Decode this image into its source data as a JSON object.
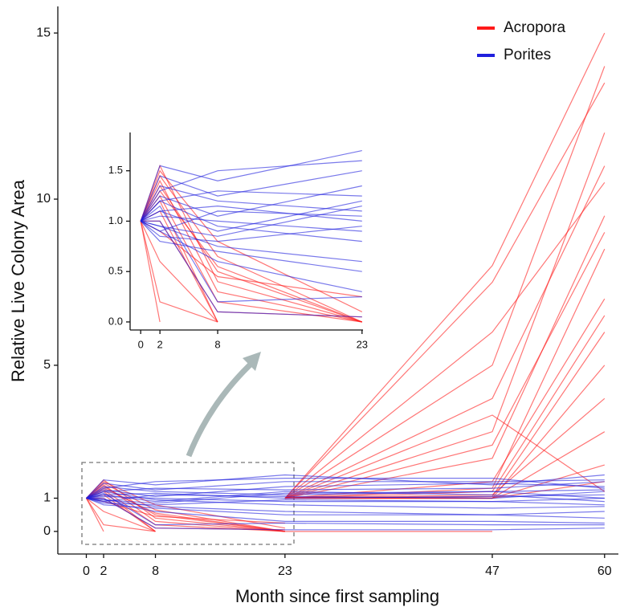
{
  "chart_data": [
    {
      "type": "line",
      "xlabel": "Month since first sampling",
      "ylabel": "Relative Live Colony Area",
      "x": [
        0,
        2,
        8,
        23,
        47,
        60
      ],
      "xlim": [
        -3.3,
        61.6
      ],
      "xticks": [
        0,
        2,
        8,
        23,
        47,
        60
      ],
      "ylim": [
        -0.68,
        15.8
      ],
      "yticks": [
        0,
        1,
        5,
        10,
        15
      ],
      "legend": "top-right",
      "series": [
        {
          "name": "Acropora",
          "color": "#ff1a1a",
          "lines": [
            [
              1,
              1.55,
              0.4,
              0,
              null,
              null
            ],
            [
              1,
              1.4,
              0.3,
              0,
              null,
              null
            ],
            [
              1,
              1.2,
              0,
              null,
              null,
              null
            ],
            [
              1,
              1.1,
              0,
              null,
              null,
              null
            ],
            [
              1,
              0,
              null,
              null,
              null,
              null
            ],
            [
              1,
              0.2,
              0,
              null,
              null,
              null
            ],
            [
              1,
              1.5,
              0.8,
              0.1,
              null,
              null
            ],
            [
              1,
              1.3,
              0.55,
              0,
              null,
              null
            ],
            [
              1,
              0.9,
              0.45,
              0.25,
              null,
              null
            ],
            [
              1,
              1.45,
              0.65,
              0,
              null,
              null
            ],
            [
              1,
              1.0,
              0.1,
              0.05,
              null,
              null
            ],
            [
              1,
              0.6,
              0,
              null,
              null,
              null
            ],
            [
              1,
              1.35,
              0.5,
              0,
              0,
              null
            ],
            [
              1,
              1.25,
              0.2,
              0,
              null,
              null
            ],
            [
              null,
              null,
              null,
              1,
              3,
              12
            ],
            [
              null,
              null,
              null,
              1,
              8,
              15
            ],
            [
              null,
              null,
              null,
              1,
              5,
              14
            ],
            [
              null,
              null,
              null,
              1,
              7.5,
              13.5
            ],
            [
              null,
              null,
              null,
              1,
              2.6,
              9
            ],
            [
              null,
              null,
              null,
              1,
              4,
              11
            ],
            [
              null,
              null,
              null,
              1,
              1.5,
              7
            ],
            [
              null,
              null,
              null,
              1,
              1.2,
              6.5
            ],
            [
              null,
              null,
              null,
              1,
              1,
              5
            ],
            [
              null,
              null,
              null,
              1,
              1.1,
              4
            ],
            [
              null,
              null,
              null,
              1,
              6,
              10.5
            ],
            [
              null,
              null,
              null,
              1,
              1,
              3
            ],
            [
              null,
              null,
              null,
              1,
              1,
              2
            ],
            [
              null,
              null,
              null,
              1,
              1.3,
              8.5
            ],
            [
              null,
              null,
              null,
              1,
              3.5,
              1.2
            ],
            [
              null,
              null,
              null,
              1,
              1,
              1.5
            ],
            [
              null,
              null,
              null,
              1,
              1.05,
              6
            ],
            [
              null,
              null,
              null,
              1,
              2.2,
              9.5
            ]
          ]
        },
        {
          "name": "Porites",
          "color": "#2020dd",
          "lines": [
            [
              1,
              1.55,
              1.4,
              1.7,
              1.4,
              1.7
            ],
            [
              1,
              1.3,
              1.5,
              1.6,
              1.6,
              1.3
            ],
            [
              1,
              1.2,
              1.3,
              1.25,
              1.3,
              1.5
            ],
            [
              1,
              0.9,
              1.1,
              1.05,
              1,
              1.2
            ],
            [
              1,
              1.1,
              0.9,
              1.2,
              1.1,
              0.9
            ],
            [
              1,
              0.85,
              0.8,
              0.95,
              0.9,
              0.8
            ],
            [
              1,
              1.05,
              1,
              0.9,
              0.9,
              1
            ],
            [
              1,
              0.95,
              0.75,
              0.6,
              0.5,
              0.6
            ],
            [
              1,
              0.9,
              0.6,
              0.3,
              0.3,
              0.25
            ],
            [
              1,
              0.8,
              0.7,
              0.5,
              0.5,
              0.4
            ],
            [
              1,
              1.15,
              0.2,
              0.25,
              0.2,
              0.2
            ],
            [
              1,
              1,
              0.1,
              0.05,
              0.05,
              0.1
            ],
            [
              1,
              1.35,
              1.2,
              1.1,
              1.2,
              1
            ],
            [
              1,
              1.25,
              1.05,
              1.35,
              1.45,
              1.35
            ],
            [
              1,
              1.45,
              1.25,
              1.5,
              1.5,
              1.55
            ],
            [
              1,
              1.2,
              0.95,
              0.8,
              0.7,
              0.75
            ],
            [
              1,
              1.1,
              1.15,
              1.0,
              1.05,
              1.1
            ],
            [
              1,
              0.95,
              0.85,
              1.15,
              1.2,
              1.25
            ]
          ]
        }
      ]
    },
    {
      "type": "inset",
      "xlim": [
        -1.1,
        23.1
      ],
      "xticks": [
        0,
        2,
        8,
        23
      ],
      "ylim": [
        -0.08,
        1.88
      ],
      "yticks": [
        {
          "value": 0,
          "label": "0.0"
        },
        0.5,
        {
          "value": 1,
          "label": "1.0"
        },
        1.5
      ]
    }
  ]
}
